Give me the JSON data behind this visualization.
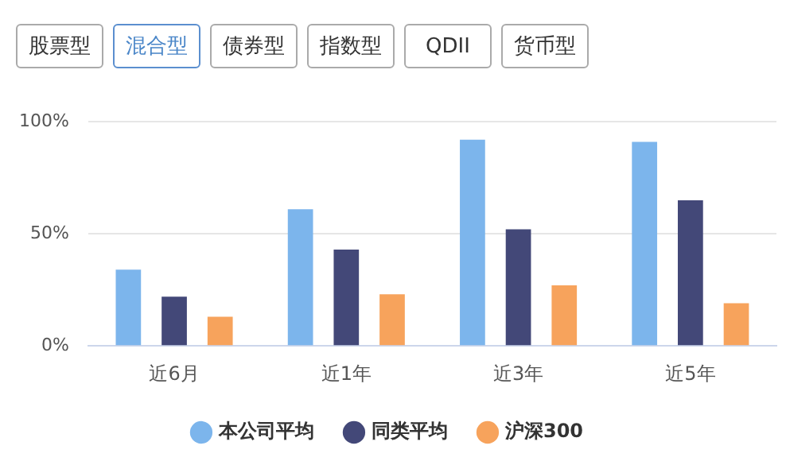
{
  "chart_data": {
    "type": "bar",
    "categories": [
      "近6月",
      "近1年",
      "近3年",
      "近5年"
    ],
    "series": [
      {
        "name": "本公司平均",
        "color": "#7cb5ec",
        "values": [
          34,
          61,
          92,
          91
        ]
      },
      {
        "name": "同类平均",
        "color": "#434878",
        "values": [
          22,
          43,
          52,
          65
        ]
      },
      {
        "name": "沪深300",
        "color": "#f7a35c",
        "values": [
          13,
          23,
          27,
          19
        ]
      }
    ],
    "ylim": [
      0,
      100
    ],
    "yticks": [
      {
        "value": 0,
        "label": "0%"
      },
      {
        "value": 50,
        "label": "50%"
      },
      {
        "value": 100,
        "label": "100%"
      }
    ],
    "grid": "y",
    "legend": "bottom",
    "annotations": [
      "股票型",
      "混合型",
      "债券型",
      "指数型",
      "QDII",
      "货币型"
    ]
  }
}
